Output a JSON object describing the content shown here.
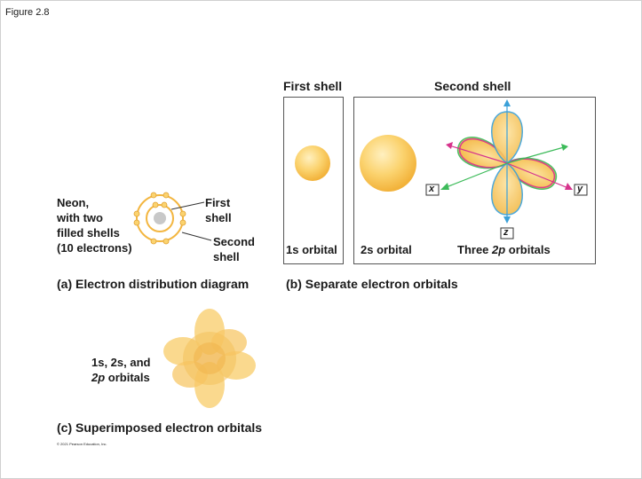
{
  "figure_label": "Figure 2.8",
  "panel_a": {
    "atom_label": [
      "Neon,",
      "with two",
      "filled shells",
      "(10 electrons)"
    ],
    "first_shell_label": [
      "First",
      "shell"
    ],
    "second_shell_label": [
      "Second",
      "shell"
    ],
    "caption": "(a) Electron distribution diagram"
  },
  "panel_b": {
    "first_shell_header": "First shell",
    "second_shell_header": "Second shell",
    "orbital_1s": "1s orbital",
    "orbital_2s": "2s orbital",
    "orbital_2p_prefix": "Three ",
    "orbital_2p_em": "2p",
    "orbital_2p_suffix": " orbitals",
    "axis_x": "x",
    "axis_y": "y",
    "axis_z": "z",
    "caption": "(b) Separate electron orbitals"
  },
  "panel_c": {
    "label_line1": "1s, 2s, and",
    "label_em": "2p",
    "label_suffix": " orbitals",
    "caption": "(c) Superimposed electron orbitals"
  },
  "copyright": "© 2021 Pearson Education, Inc.",
  "colors": {
    "orbital_fill": "#f7c75a",
    "orbital_light": "#fde7a6",
    "lobe_z": "#3aa0d8",
    "lobe_x": "#3dbb5a",
    "lobe_y": "#d6338c",
    "nucleus": "#c8c8c8"
  }
}
